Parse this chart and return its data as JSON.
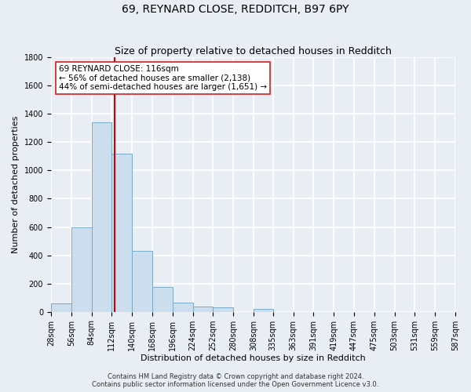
{
  "title": "69, REYNARD CLOSE, REDDITCH, B97 6PY",
  "subtitle": "Size of property relative to detached houses in Redditch",
  "xlabel": "Distribution of detached houses by size in Redditch",
  "ylabel": "Number of detached properties",
  "bin_edges": [
    28,
    56,
    84,
    112,
    140,
    168,
    196,
    224,
    252,
    280,
    308,
    335,
    363,
    391,
    419,
    447,
    475,
    503,
    531,
    559,
    587
  ],
  "bar_heights": [
    60,
    600,
    1340,
    1120,
    430,
    175,
    65,
    35,
    30,
    0,
    20,
    0,
    0,
    0,
    0,
    0,
    0,
    0,
    0,
    0
  ],
  "bar_color": "#ccdded",
  "bar_edge_color": "#7aaac8",
  "vline_x": 116,
  "vline_color": "#cc0000",
  "ylim": [
    0,
    1800
  ],
  "yticks": [
    0,
    200,
    400,
    600,
    800,
    1000,
    1200,
    1400,
    1600,
    1800
  ],
  "annotation_title": "69 REYNARD CLOSE: 116sqm",
  "annotation_line1": "← 56% of detached houses are smaller (2,138)",
  "annotation_line2": "44% of semi-detached houses are larger (1,651) →",
  "footer_line1": "Contains HM Land Registry data © Crown copyright and database right 2024.",
  "footer_line2": "Contains public sector information licensed under the Open Government Licence v3.0.",
  "background_color": "#e8eef4",
  "plot_bg_color": "#e8eef4",
  "grid_color": "#ffffff",
  "title_fontsize": 10,
  "subtitle_fontsize": 9,
  "axis_label_fontsize": 8,
  "tick_label_fontsize": 7,
  "annotation_fontsize": 7.5,
  "footer_fontsize": 6
}
